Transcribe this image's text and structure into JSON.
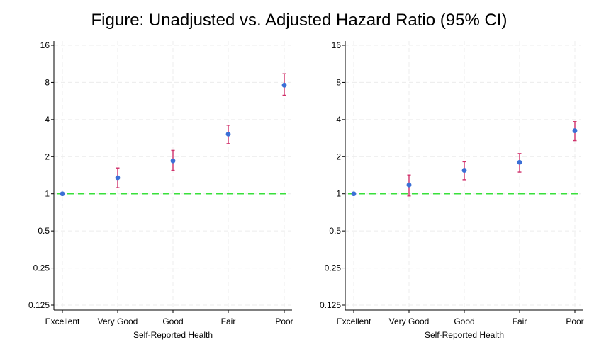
{
  "figure_title": "Figure: Unadjusted vs. Adjusted Hazard Ratio (95% CI)",
  "colors": {
    "point": "#3b6fd6",
    "ci": "#d0306a",
    "reference_line": "#39e03b",
    "grid": "#ececec",
    "axis": "#000000"
  },
  "chart_data": [
    {
      "type": "scatter",
      "title": "",
      "xlabel": "Self-Reported Health",
      "ylabel": "",
      "y_scale": "log2",
      "ylim": [
        0.125,
        16
      ],
      "yticks": [
        16,
        8,
        4,
        2,
        1,
        0.5,
        0.25,
        0.125
      ],
      "ytick_labels": [
        "16",
        "8",
        "4",
        "2",
        "1",
        "0.5",
        "0.25",
        "0.125"
      ],
      "categories": [
        "Excellent",
        "Very Good",
        "Good",
        "Fair",
        "Poor"
      ],
      "estimate": [
        1,
        1.35,
        1.85,
        3.05,
        7.6
      ],
      "ci_lower": [
        null,
        1.12,
        1.55,
        2.55,
        6.3
      ],
      "ci_upper": [
        null,
        1.62,
        2.25,
        3.6,
        9.4
      ],
      "reference_line": 1,
      "grid": true
    },
    {
      "type": "scatter",
      "title": "",
      "xlabel": "Self-Reported Health",
      "ylabel": "",
      "y_scale": "log2",
      "ylim": [
        0.125,
        16
      ],
      "yticks": [
        16,
        8,
        4,
        2,
        1,
        0.5,
        0.25,
        0.125
      ],
      "ytick_labels": [
        "16",
        "8",
        "4",
        "2",
        "1",
        "0.5",
        "0.25",
        "0.125"
      ],
      "categories": [
        "Excellent",
        "Very Good",
        "Good",
        "Fair",
        "Poor"
      ],
      "estimate": [
        1,
        1.18,
        1.55,
        1.8,
        3.25
      ],
      "ci_lower": [
        null,
        0.96,
        1.3,
        1.5,
        2.7
      ],
      "ci_upper": [
        null,
        1.42,
        1.82,
        2.12,
        3.85
      ],
      "reference_line": 1,
      "grid": true
    }
  ]
}
